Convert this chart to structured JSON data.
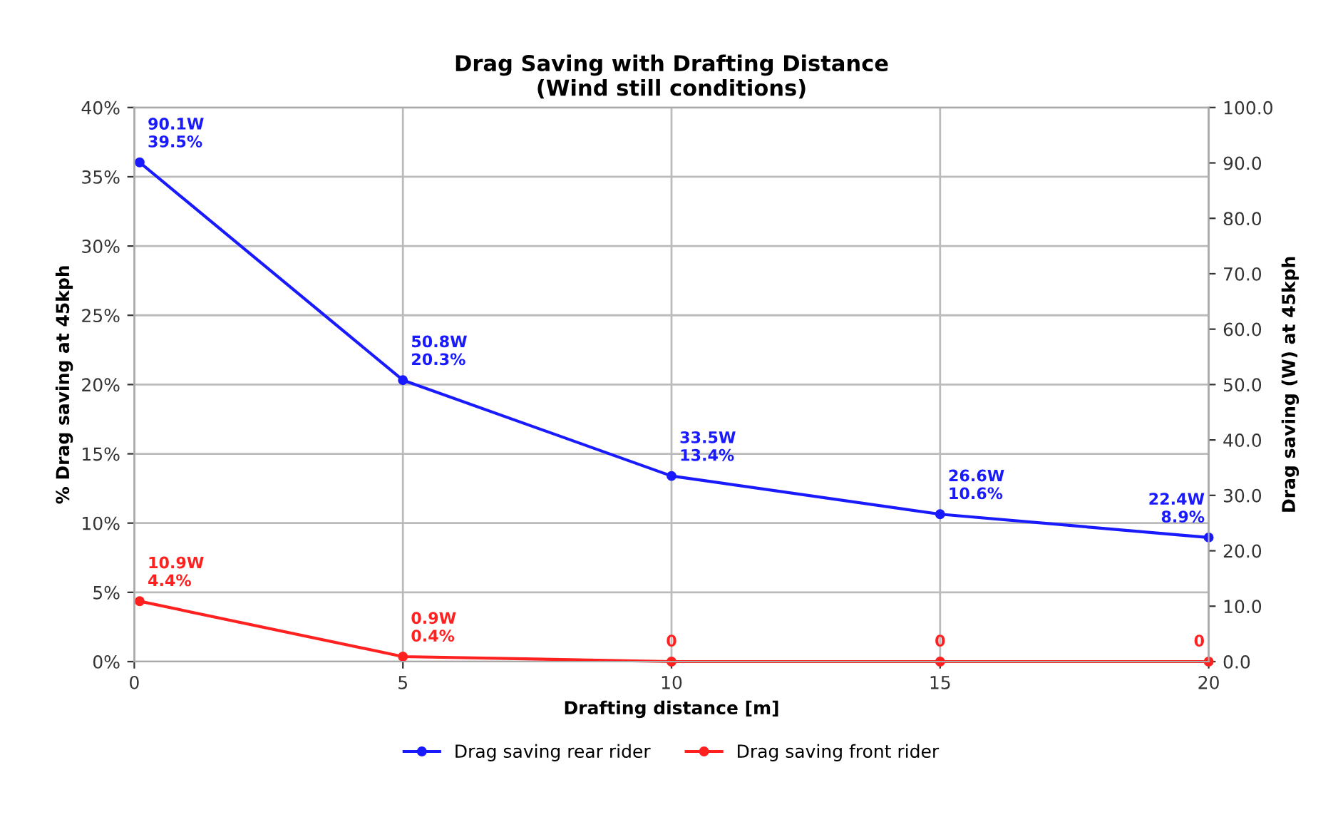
{
  "chart_data": {
    "type": "line",
    "title": "Drag Saving with Drafting Distance\n(Wind still conditions)",
    "xlabel": "Drafting distance [m]",
    "ylabel": "% Drag saving at 45kph",
    "y2label": "Drag saving (W) at 45kph",
    "series": [
      {
        "name": "Drag saving rear rider",
        "color": "#1a1aff",
        "axis": "y2",
        "x": [
          0.1,
          5,
          10,
          15,
          20
        ],
        "values": [
          90.1,
          50.8,
          33.5,
          26.6,
          22.4
        ],
        "value_labels": [
          "90.1W\n39.5%",
          "50.8W\n20.3%",
          "33.5W\n13.4%",
          "26.6W\n10.6%",
          "22.4W\n8.9%"
        ]
      },
      {
        "name": "Drag saving front rider",
        "color": "#ff2020",
        "axis": "y2",
        "x": [
          0.1,
          5,
          10,
          15,
          20
        ],
        "values": [
          10.9,
          0.9,
          0,
          0,
          0
        ],
        "value_labels": [
          "10.9W\n4.4%",
          "0.9W\n0.4%",
          "0",
          "0",
          "0"
        ]
      }
    ],
    "xlim": [
      0,
      20
    ],
    "xticks": [
      0,
      5,
      10,
      15,
      20
    ],
    "ylim": [
      0,
      0.4
    ],
    "yticks": [
      {
        "value": 0,
        "label": "0%"
      },
      {
        "value": 0.05,
        "label": "5%"
      },
      {
        "value": 0.1,
        "label": "10%"
      },
      {
        "value": 0.15,
        "label": "15%"
      },
      {
        "value": 0.2,
        "label": "20%"
      },
      {
        "value": 0.25,
        "label": "25%"
      },
      {
        "value": 0.3,
        "label": "30%"
      },
      {
        "value": 0.35,
        "label": "35%"
      },
      {
        "value": 0.4,
        "label": "40%"
      }
    ],
    "y2lim": [
      0,
      100
    ],
    "y2ticks": [
      {
        "value": 0,
        "label": "0.0"
      },
      {
        "value": 10,
        "label": "10.0"
      },
      {
        "value": 20,
        "label": "20.0"
      },
      {
        "value": 30,
        "label": "30.0"
      },
      {
        "value": 40,
        "label": "40.0"
      },
      {
        "value": 50,
        "label": "50.0"
      },
      {
        "value": 60,
        "label": "60.0"
      },
      {
        "value": 70,
        "label": "70.0"
      },
      {
        "value": 80,
        "label": "80.0"
      },
      {
        "value": 90,
        "label": "90.0"
      },
      {
        "value": 100,
        "label": "100.0"
      }
    ],
    "grid": true,
    "legend": "bottom",
    "marker": "circle",
    "line_style": "solid"
  }
}
